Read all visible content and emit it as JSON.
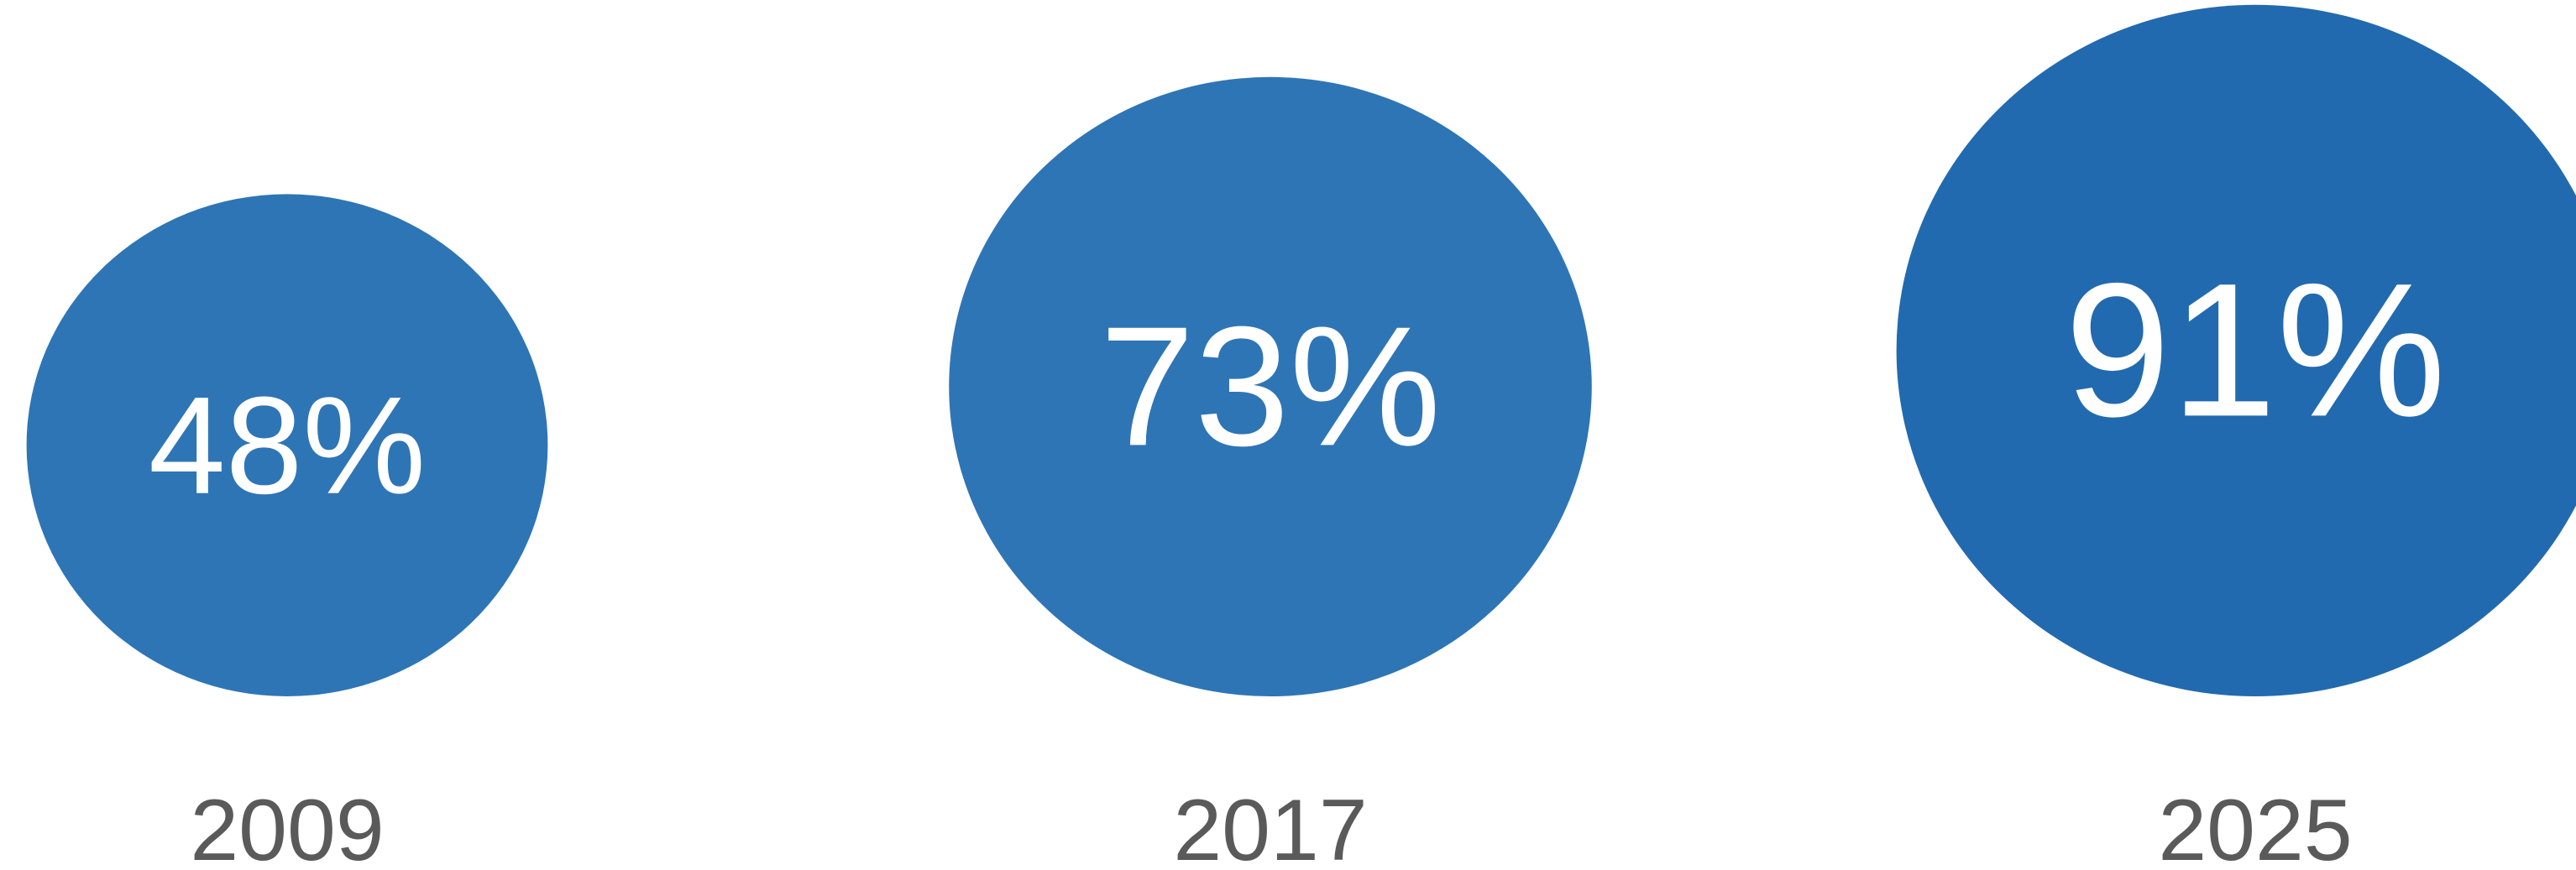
{
  "chart_data": {
    "type": "bubble",
    "title": "",
    "xlabel": "",
    "ylabel": "",
    "grid": false,
    "legend": "none",
    "unit": "%",
    "categories": [
      "2009",
      "2017",
      "2025"
    ],
    "values": [
      48,
      73,
      91
    ],
    "labels": [
      "48%",
      "73%",
      "91%"
    ],
    "colors": [
      "#2e75b6",
      "#2e75b6",
      "#226aaf"
    ]
  }
}
